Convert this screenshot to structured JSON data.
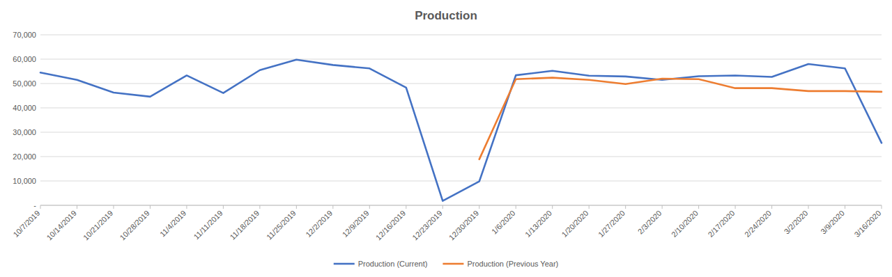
{
  "chart_data": {
    "type": "line",
    "title": "Production",
    "categories": [
      "10/7/2019",
      "10/14/2019",
      "10/21/2019",
      "10/28/2019",
      "11/4/2019",
      "11/11/2019",
      "11/18/2019",
      "11/25/2019",
      "12/2/2019",
      "12/9/2019",
      "12/16/2019",
      "12/23/2019",
      "12/30/2019",
      "1/6/2020",
      "1/13/2020",
      "1/20/2020",
      "1/27/2020",
      "2/3/2020",
      "2/10/2020",
      "2/17/2020",
      "2/24/2020",
      "3/2/2020",
      "3/9/2020",
      "3/16/2020"
    ],
    "series": [
      {
        "name": "Production (Current)",
        "color": "#4472c4",
        "values": [
          54500,
          51500,
          46300,
          44600,
          53300,
          46100,
          55500,
          59800,
          57600,
          56200,
          48300,
          1800,
          9800,
          53400,
          55200,
          53200,
          52900,
          51500,
          53000,
          53300,
          52700,
          58000,
          56200,
          25600
        ]
      },
      {
        "name": "Production (Previous Year)",
        "color": "#ed7d31",
        "values": [
          null,
          null,
          null,
          null,
          null,
          null,
          null,
          null,
          null,
          null,
          null,
          null,
          18900,
          51800,
          52400,
          51500,
          49800,
          52000,
          51800,
          48100,
          48100,
          46900,
          46900,
          46600
        ]
      }
    ],
    "ylim": [
      0,
      70000
    ],
    "yticks": [
      {
        "value": 0,
        "label": "-"
      },
      {
        "value": 10000,
        "label": "10,000"
      },
      {
        "value": 20000,
        "label": "20,000"
      },
      {
        "value": 30000,
        "label": "30,000"
      },
      {
        "value": 40000,
        "label": "40,000"
      },
      {
        "value": 50000,
        "label": "50,000"
      },
      {
        "value": 60000,
        "label": "60,000"
      },
      {
        "value": 70000,
        "label": "70,000"
      }
    ],
    "grid": true,
    "legend": "bottom"
  }
}
